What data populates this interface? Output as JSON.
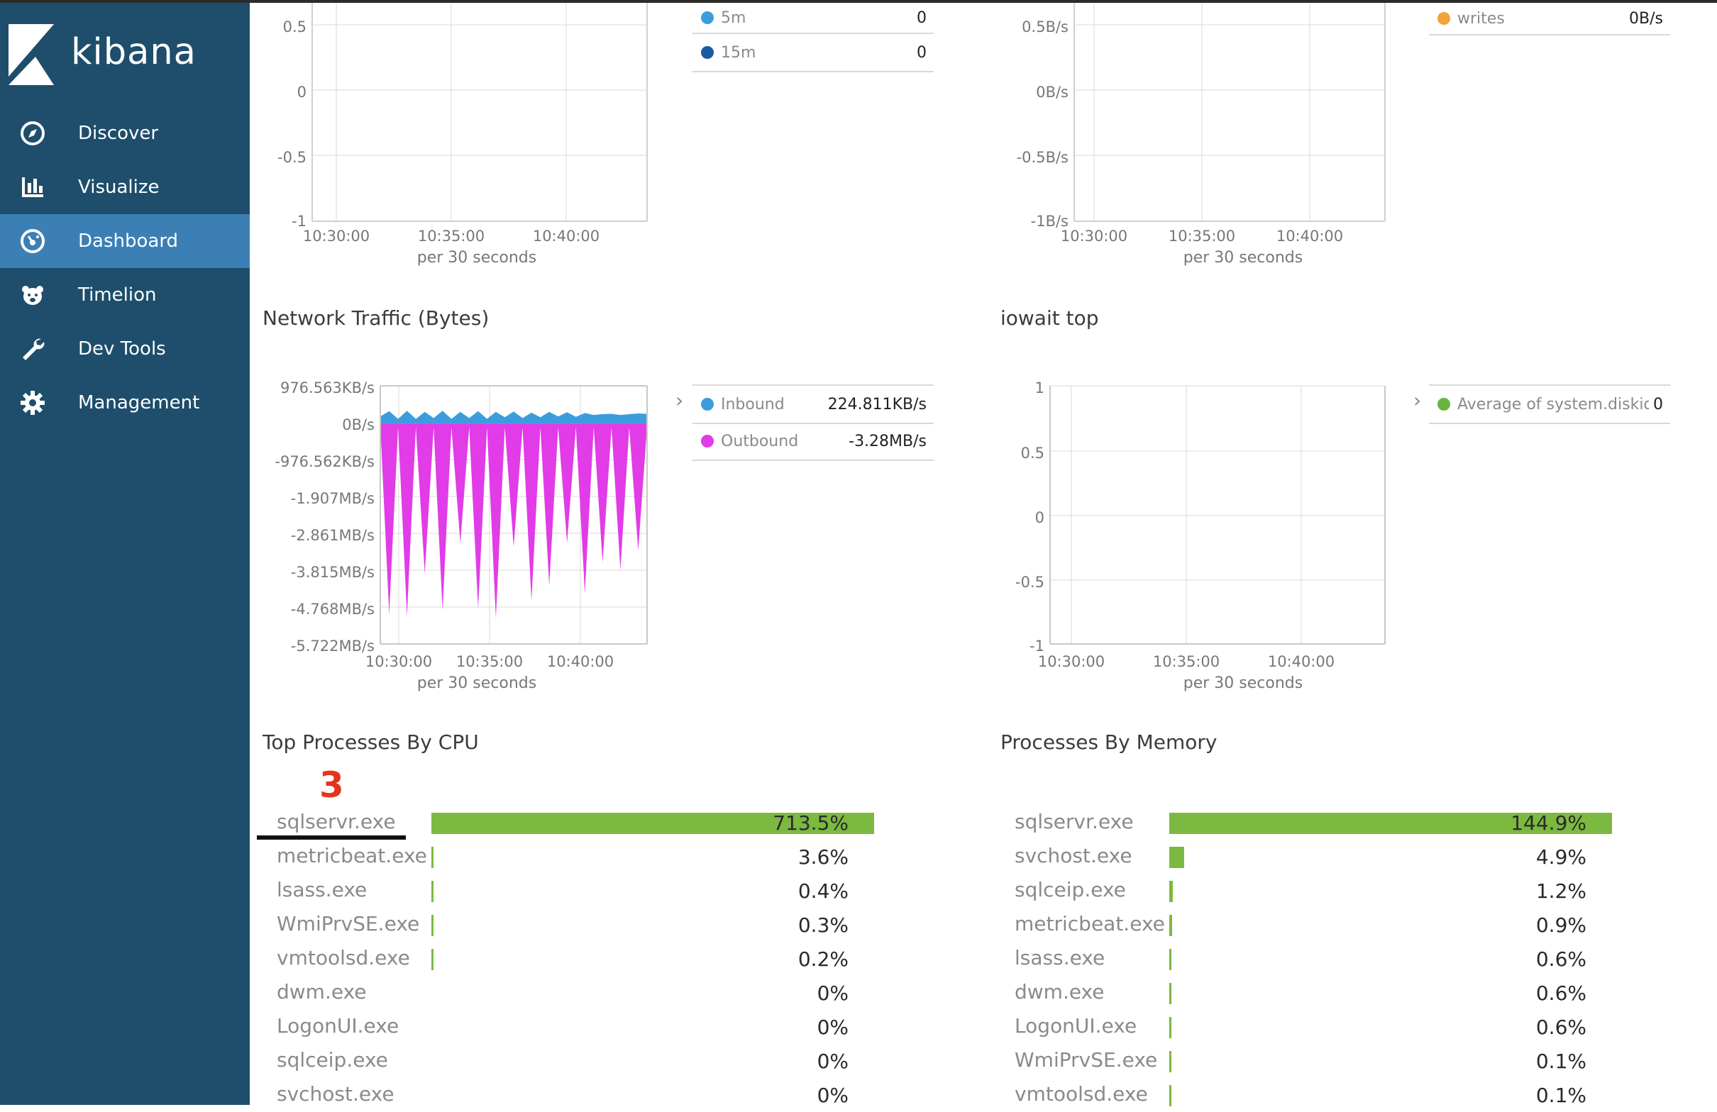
{
  "app": {
    "name": "kibana"
  },
  "sidebar": {
    "items": [
      {
        "label": "Discover",
        "icon": "compass-icon",
        "active": false
      },
      {
        "label": "Visualize",
        "icon": "bar-chart-icon",
        "active": false
      },
      {
        "label": "Dashboard",
        "icon": "dashboard-gauge-icon",
        "active": true
      },
      {
        "label": "Timelion",
        "icon": "timelion-bear-icon",
        "active": false
      },
      {
        "label": "Dev Tools",
        "icon": "wrench-icon",
        "active": false
      },
      {
        "label": "Management",
        "icon": "gear-icon",
        "active": false
      }
    ]
  },
  "colors": {
    "sidebar_bg": "#1e4e6b",
    "sidebar_active": "#3b7fb5",
    "inbound": "#3b9ddd",
    "outbound": "#e13ce7",
    "bar_green": "#7cb940",
    "load_5m": "#3b9ddd",
    "load_15m": "#1c5aa3",
    "writes": "#f1a33c",
    "iowait": "#6ab43c",
    "annotation_red": "#e5341d"
  },
  "top_left_panel": {
    "legend": [
      {
        "label": "5m",
        "value": "0"
      },
      {
        "label": "15m",
        "value": "0"
      }
    ]
  },
  "top_right_panel": {
    "legend": [
      {
        "label": "writes",
        "value": "0B/s"
      }
    ]
  },
  "network_panel": {
    "title": "Network Traffic (Bytes)",
    "legend": [
      {
        "label": "Inbound",
        "value": "224.811KB/s"
      },
      {
        "label": "Outbound",
        "value": "-3.28MB/s"
      }
    ]
  },
  "iowait_panel": {
    "title": "iowait top",
    "legend": [
      {
        "label": "Average of system.diskio.i",
        "value": "0"
      }
    ]
  },
  "cpu_panel": {
    "title": "Top Processes By CPU",
    "annotation": "3",
    "rows": [
      {
        "name": "sqlservr.exe",
        "value": "713.5%",
        "pct": 713.5
      },
      {
        "name": "metricbeat.exe",
        "value": "3.6%",
        "pct": 3.6
      },
      {
        "name": "lsass.exe",
        "value": "0.4%",
        "pct": 0.4
      },
      {
        "name": "WmiPrvSE.exe",
        "value": "0.3%",
        "pct": 0.3
      },
      {
        "name": "vmtoolsd.exe",
        "value": "0.2%",
        "pct": 0.2
      },
      {
        "name": "dwm.exe",
        "value": "0%",
        "pct": 0
      },
      {
        "name": "LogonUI.exe",
        "value": "0%",
        "pct": 0
      },
      {
        "name": "sqlceip.exe",
        "value": "0%",
        "pct": 0
      },
      {
        "name": "svchost.exe",
        "value": "0%",
        "pct": 0
      }
    ]
  },
  "memory_panel": {
    "title": "Processes By Memory",
    "rows": [
      {
        "name": "sqlservr.exe",
        "value": "144.9%",
        "pct": 144.9
      },
      {
        "name": "svchost.exe",
        "value": "4.9%",
        "pct": 4.9
      },
      {
        "name": "sqlceip.exe",
        "value": "1.2%",
        "pct": 1.2
      },
      {
        "name": "metricbeat.exe",
        "value": "0.9%",
        "pct": 0.9
      },
      {
        "name": "lsass.exe",
        "value": "0.6%",
        "pct": 0.6
      },
      {
        "name": "dwm.exe",
        "value": "0.6%",
        "pct": 0.6
      },
      {
        "name": "LogonUI.exe",
        "value": "0.6%",
        "pct": 0.6
      },
      {
        "name": "WmiPrvSE.exe",
        "value": "0.1%",
        "pct": 0.1
      },
      {
        "name": "vmtoolsd.exe",
        "value": "0.1%",
        "pct": 0.1
      }
    ]
  },
  "chart_data": [
    {
      "type": "line",
      "panel": "top-left",
      "yticks": [
        "0.5",
        "0",
        "-0.5",
        "-1"
      ],
      "xticks": [
        "10:30:00",
        "10:35:00",
        "10:40:00"
      ],
      "xlabel": "per 30 seconds",
      "series": [
        {
          "name": "5m",
          "values": [
            0
          ]
        },
        {
          "name": "15m",
          "values": [
            0
          ]
        }
      ]
    },
    {
      "type": "line",
      "panel": "top-right",
      "yticks": [
        "0.5B/s",
        "0B/s",
        "-0.5B/s",
        "-1B/s"
      ],
      "xticks": [
        "10:30:00",
        "10:35:00",
        "10:40:00"
      ],
      "xlabel": "per 30 seconds",
      "series": [
        {
          "name": "writes",
          "values": [
            0
          ]
        }
      ]
    },
    {
      "type": "area",
      "panel": "network",
      "title": "Network Traffic (Bytes)",
      "yticks": [
        "976.563KB/s",
        "0B/s",
        "-976.562KB/s",
        "-1.907MB/s",
        "-2.861MB/s",
        "-3.815MB/s",
        "-4.768MB/s",
        "-5.722MB/s"
      ],
      "ylim": [
        -5.722,
        0.977
      ],
      "yunit": "MB/s",
      "xticks": [
        "10:30:00",
        "10:35:00",
        "10:40:00"
      ],
      "xlabel": "per 30 seconds",
      "series": [
        {
          "name": "Inbound",
          "values": [
            0.18,
            0.32,
            0.12,
            0.33,
            0.12,
            0.3,
            0.14,
            0.33,
            0.12,
            0.3,
            0.14,
            0.32,
            0.12,
            0.3,
            0.16,
            0.31,
            0.14,
            0.28,
            0.16,
            0.3,
            0.18,
            0.29,
            0.17,
            0.27,
            0.22,
            0.24,
            0.25,
            0.22,
            0.24,
            0.26,
            0.25
          ]
        },
        {
          "name": "Outbound",
          "values": [
            -0.05,
            -4.95,
            -0.1,
            -5.0,
            -0.1,
            -3.9,
            -0.1,
            -4.85,
            -0.1,
            -3.1,
            -0.1,
            -4.8,
            -0.1,
            -5.05,
            -0.1,
            -3.2,
            -0.1,
            -4.6,
            -0.1,
            -4.2,
            -0.1,
            -3.1,
            -0.1,
            -4.4,
            -0.1,
            -3.6,
            -0.1,
            -3.8,
            -0.1,
            -3.3,
            -0.1
          ]
        }
      ]
    },
    {
      "type": "line",
      "panel": "iowait",
      "title": "iowait top",
      "yticks": [
        "1",
        "0.5",
        "0",
        "-0.5",
        "-1"
      ],
      "xticks": [
        "10:30:00",
        "10:35:00",
        "10:40:00"
      ],
      "xlabel": "per 30 seconds",
      "series": [
        {
          "name": "Average of system.diskio.i",
          "values": [
            0
          ]
        }
      ]
    },
    {
      "type": "bar",
      "panel": "cpu",
      "title": "Top Processes By CPU",
      "categories": [
        "sqlservr.exe",
        "metricbeat.exe",
        "lsass.exe",
        "WmiPrvSE.exe",
        "vmtoolsd.exe",
        "dwm.exe",
        "LogonUI.exe",
        "sqlceip.exe",
        "svchost.exe"
      ],
      "values": [
        713.5,
        3.6,
        0.4,
        0.3,
        0.2,
        0,
        0,
        0,
        0
      ]
    },
    {
      "type": "bar",
      "panel": "memory",
      "title": "Processes By Memory",
      "categories": [
        "sqlservr.exe",
        "svchost.exe",
        "sqlceip.exe",
        "metricbeat.exe",
        "lsass.exe",
        "dwm.exe",
        "LogonUI.exe",
        "WmiPrvSE.exe",
        "vmtoolsd.exe"
      ],
      "values": [
        144.9,
        4.9,
        1.2,
        0.9,
        0.6,
        0.6,
        0.6,
        0.1,
        0.1
      ]
    }
  ]
}
